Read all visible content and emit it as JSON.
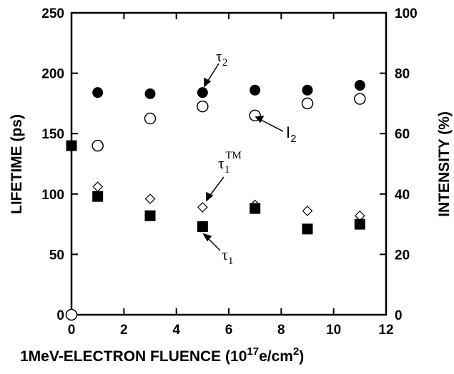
{
  "chart_data": {
    "type": "scatter",
    "xlabel_prefix": "1MeV-ELECTRON FLUENCE (10",
    "xlabel_exp": "17",
    "xlabel_mid": "e/cm",
    "xlabel_exp2": "2",
    "xlabel_suffix": ")",
    "ylabel_left": "LIFETIME (ps)",
    "ylabel_right": "INTENSITY (%)",
    "xlim": [
      0,
      12
    ],
    "ylim_left": [
      0,
      250
    ],
    "ylim_right": [
      0,
      100
    ],
    "x_ticks": [
      "0",
      "2",
      "4",
      "6",
      "8",
      "10",
      "12"
    ],
    "y_left_ticks": [
      "0",
      "50",
      "100",
      "150",
      "200",
      "250"
    ],
    "y_right_ticks": [
      "0",
      "20",
      "40",
      "60",
      "80",
      "100"
    ],
    "series": [
      {
        "name": "τ2",
        "marker": "filled-circle",
        "axis": "left",
        "x": [
          1,
          3,
          5,
          7,
          9,
          11
        ],
        "y": [
          184,
          183,
          184,
          186,
          186,
          190
        ]
      },
      {
        "name": "I2",
        "marker": "open-circle",
        "axis": "right",
        "x": [
          0,
          1,
          3,
          5,
          7,
          9,
          11
        ],
        "y": [
          0,
          56,
          65,
          69,
          66,
          70,
          71.5
        ]
      },
      {
        "name": "τ1TM",
        "marker": "open-diamond",
        "axis": "left",
        "x": [
          1,
          3,
          5,
          7,
          9,
          11
        ],
        "y": [
          106,
          96,
          89,
          91,
          86,
          82
        ]
      },
      {
        "name": "τ1",
        "marker": "filled-square",
        "axis": "left",
        "x": [
          0,
          1,
          3,
          5,
          7,
          9,
          11
        ],
        "y": [
          140,
          98,
          82,
          73,
          88,
          71,
          75
        ]
      }
    ],
    "annotations": {
      "tau2": {
        "base": "τ",
        "sub": "2"
      },
      "i2": {
        "base": "I",
        "sub": "2"
      },
      "tau1tm": {
        "base": "τ",
        "sub": "1",
        "sup": "TM"
      },
      "tau1": {
        "base": "τ",
        "sub": "1"
      }
    }
  }
}
